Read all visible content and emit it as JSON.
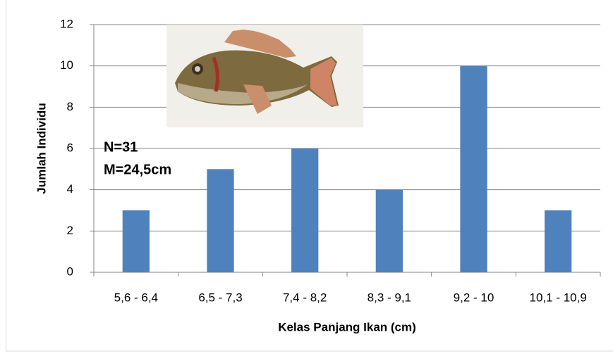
{
  "chart_data": {
    "type": "bar",
    "x_label": "Kelas Panjang Ikan (cm)",
    "y_label": "Jumlah Individu",
    "categories": [
      "5,6 - 6,4",
      "6,5 - 7,3",
      "7,4 - 8,2",
      "8,3 - 9,1",
      "9,2 - 10",
      "10,1 - 10,9"
    ],
    "values": [
      3,
      5,
      6,
      4,
      10,
      3
    ],
    "color": "#4f81bd",
    "ylim": [
      0,
      12
    ],
    "yticks": [
      0,
      2,
      4,
      6,
      8,
      10,
      12
    ],
    "grid": true,
    "annotations": [
      "N=31",
      "M=24,5cm"
    ]
  }
}
